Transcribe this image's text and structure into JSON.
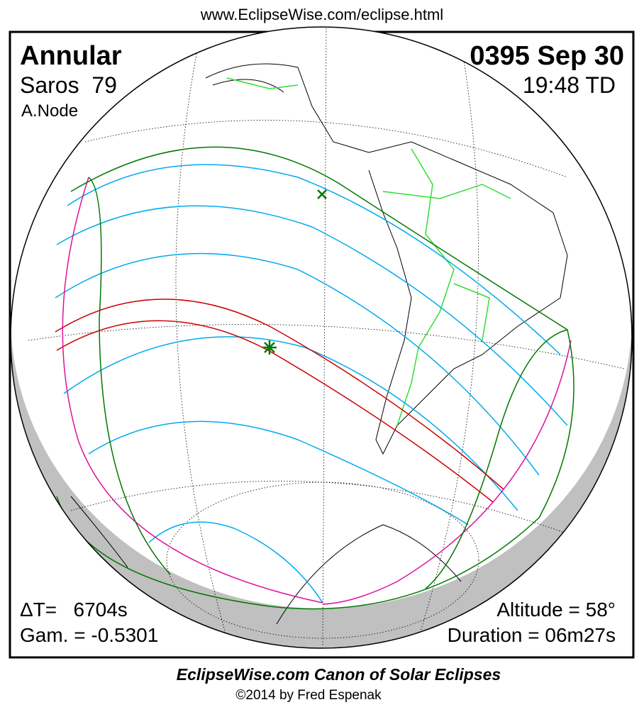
{
  "header": {
    "url": "www.EclipseWise.com/eclipse.html"
  },
  "panel": {
    "eclipse_type": "Annular",
    "saros": "Saros  79",
    "node": "A.Node",
    "date": "0395 Sep 30",
    "time": "19:48 TD",
    "delta_t": "ΔT=   6704s",
    "gamma": "Gam. = -0.5301",
    "altitude": "Altitude = 58°",
    "duration": "Duration = 06m27s"
  },
  "footer": {
    "title": "EclipseWise.com Canon of Solar Eclipses",
    "credit": "©2014 by Fred Espenak"
  }
}
